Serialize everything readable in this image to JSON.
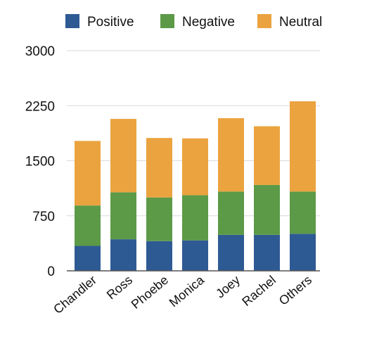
{
  "chart_data": {
    "type": "bar",
    "stacked": true,
    "title": "",
    "xlabel": "",
    "ylabel": "",
    "categories": [
      "Chandler",
      "Ross",
      "Phoebe",
      "Monica",
      "Joey",
      "Rachel",
      "Others"
    ],
    "series": [
      {
        "name": "Positive",
        "color": "#2e5a94",
        "values": [
          340,
          430,
          405,
          415,
          490,
          490,
          505
        ]
      },
      {
        "name": "Negative",
        "color": "#5c9a47",
        "values": [
          550,
          640,
          595,
          615,
          590,
          680,
          575
        ]
      },
      {
        "name": "Neutral",
        "color": "#eba33f",
        "values": [
          880,
          1000,
          810,
          775,
          1000,
          800,
          1230
        ]
      }
    ],
    "ylim": [
      0,
      3000
    ],
    "yticks": [
      "0",
      "750",
      "1500",
      "2250",
      "3000"
    ],
    "grid": true,
    "legend_position": "top",
    "grid_color": "#d9d9d9",
    "axis_color": "#555555"
  }
}
